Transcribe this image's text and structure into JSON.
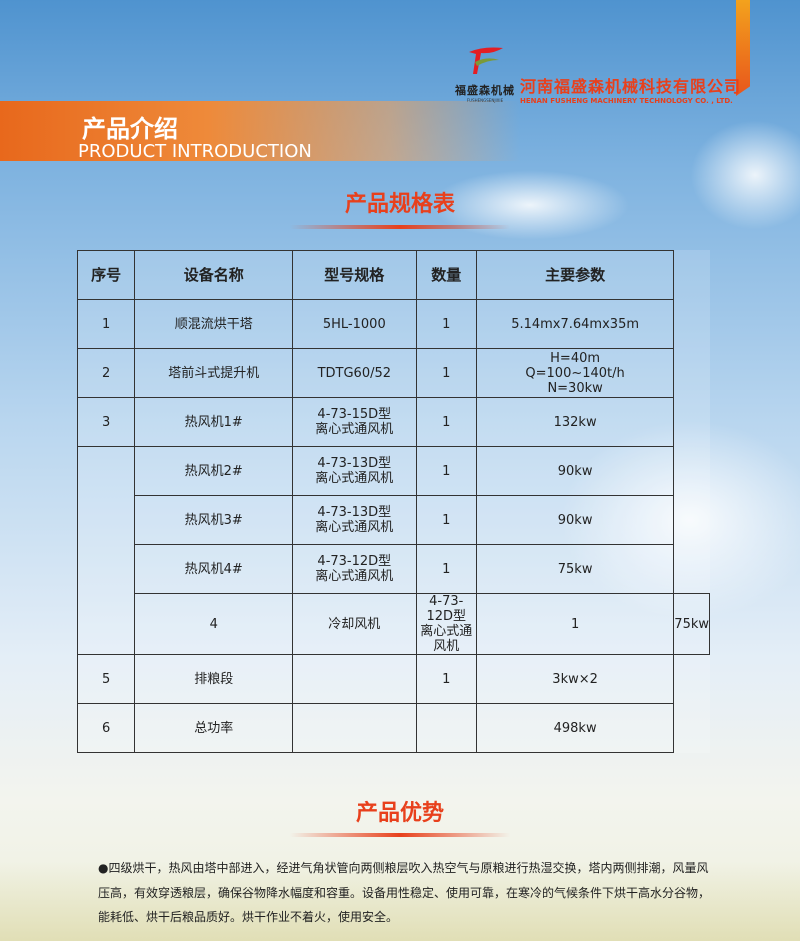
{
  "header": {
    "logo_name": "福盛森机械",
    "logo_sub": "FUSHENGSENJIXIE",
    "company_cn": "河南福盛森机械科技有限公司",
    "company_en": "HENAN FUSHENG MACHINERY TECHNOLOGY CO. , LTD.",
    "brand_color": "#e8401c"
  },
  "banner": {
    "title": "产品介绍",
    "subtitle": "PRODUCT INTRODUCTION"
  },
  "spec": {
    "title": "产品规格表",
    "headers": [
      "序号",
      "设备名称",
      "型号规格",
      "数量",
      "主要参数"
    ],
    "rows": [
      {
        "no": "1",
        "name": "顺混流烘干塔",
        "model": "5HL-1000",
        "qty": "1",
        "params": "5.14mx7.64mx35m"
      },
      {
        "no": "2",
        "name": "塔前斗式提升机",
        "model": "TDTG60/52",
        "qty": "1",
        "params": "H=40m\nQ=100~140t/h\nN=30kw"
      },
      {
        "no": "3",
        "name": "热风机1#",
        "model": "4-73-15D型\n离心式通风机",
        "qty": "1",
        "params": "132kw"
      },
      {
        "no": "",
        "name": "热风机2#",
        "model": "4-73-13D型\n离心式通风机",
        "qty": "1",
        "params": "90kw"
      },
      {
        "no": "",
        "name": "热风机3#",
        "model": "4-73-13D型\n离心式通风机",
        "qty": "1",
        "params": "90kw"
      },
      {
        "no": "",
        "name": "热风机4#",
        "model": "4-73-12D型\n离心式通风机",
        "qty": "1",
        "params": "75kw"
      },
      {
        "no": "4",
        "name": "冷却风机",
        "model": "4-73-12D型\n离心式通风机",
        "qty": "1",
        "params": "75kw"
      },
      {
        "no": "5",
        "name": "排粮段",
        "model": "",
        "qty": "1",
        "params": "3kw×2"
      },
      {
        "no": "6",
        "name": "总功率",
        "model": "",
        "qty": "",
        "params": "498kw"
      }
    ]
  },
  "advantages": {
    "title": "产品优势",
    "text": "●四级烘干，热风由塔中部进入，经进气角状管向两侧粮层吹入热空气与原粮进行热湿交换，塔内两侧排潮，风量风压高，有效穿透粮层，确保谷物降水幅度和容重。设备用性稳定、使用可靠，在寒冷的气候条件下烘干高水分谷物，能耗低、烘干后粮品质好。烘干作业不着火，使用安全。"
  }
}
